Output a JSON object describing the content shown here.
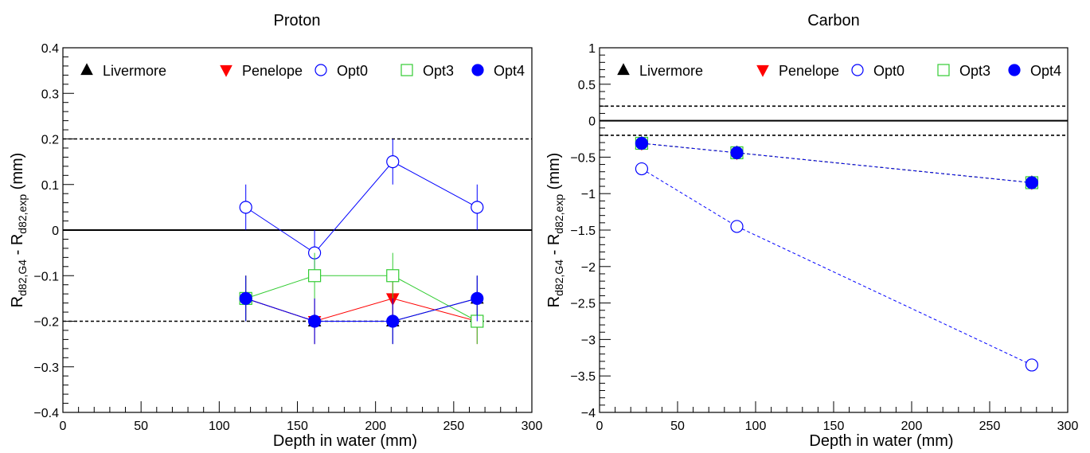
{
  "chart_data": [
    {
      "type": "scatter",
      "title": "Proton",
      "xlabel": "Depth in water (mm)",
      "ylabel": {
        "main": "R",
        "sub1": "d82,G4",
        "mid": " - R",
        "sub2": "d82,exp",
        "unit": " (mm)"
      },
      "xlim": [
        0,
        300
      ],
      "ylim": [
        -0.4,
        0.4
      ],
      "xticks": [
        0,
        50,
        100,
        150,
        200,
        250,
        300
      ],
      "xtick_labels": [
        "0",
        "50",
        "100",
        "150",
        "200",
        "250",
        "300"
      ],
      "yticks": [
        -0.4,
        -0.3,
        -0.2,
        -0.1,
        0,
        0.1,
        0.2,
        0.3,
        0.4
      ],
      "ytick_labels": [
        "−0.4",
        "−0.3",
        "−0.2",
        "−0.1",
        "0",
        "0.1",
        "0.2",
        "0.3",
        "0.4"
      ],
      "grid": false,
      "legend_position": "top",
      "reference_lines": [
        {
          "y": 0.2,
          "style": "dashed"
        },
        {
          "y": 0,
          "style": "solid"
        },
        {
          "y": -0.2,
          "style": "dashed"
        }
      ],
      "series": [
        {
          "name": "Livermore",
          "marker": "triangle-up",
          "filled": true,
          "color": "#000000",
          "line_style": "solid",
          "x": [
            117,
            161,
            211,
            265
          ],
          "y": [
            -0.15,
            -0.2,
            -0.2,
            -0.15
          ],
          "error": [
            0.05,
            0.05,
            0.05,
            0.05
          ]
        },
        {
          "name": "Penelope",
          "marker": "triangle-down",
          "filled": true,
          "color": "#ff0000",
          "line_style": "solid",
          "x": [
            117,
            161,
            211,
            265
          ],
          "y": [
            -0.15,
            -0.2,
            -0.15,
            -0.2
          ],
          "error": [
            0.05,
            0.05,
            0.05,
            0.05
          ]
        },
        {
          "name": "Opt0",
          "marker": "circle",
          "filled": false,
          "color": "#0000ff",
          "line_style": "solid",
          "x": [
            117,
            161,
            211,
            265
          ],
          "y": [
            0.05,
            -0.05,
            0.15,
            0.05
          ],
          "error": [
            0.05,
            0.05,
            0.05,
            0.05
          ]
        },
        {
          "name": "Opt3",
          "marker": "square",
          "filled": false,
          "color": "#33cc33",
          "line_style": "solid",
          "x": [
            117,
            161,
            211,
            265
          ],
          "y": [
            -0.15,
            -0.1,
            -0.1,
            -0.2
          ],
          "error": [
            0.05,
            0.05,
            0.05,
            0.05
          ]
        },
        {
          "name": "Opt4",
          "marker": "circle",
          "filled": true,
          "color": "#0000ff",
          "line_style": "solid",
          "x": [
            117,
            161,
            211,
            265
          ],
          "y": [
            -0.15,
            -0.2,
            -0.2,
            -0.15
          ],
          "error": [
            0.05,
            0.05,
            0.05,
            0.05
          ]
        }
      ]
    },
    {
      "type": "scatter",
      "title": "Carbon",
      "xlabel": "Depth in water (mm)",
      "ylabel": {
        "main": "R",
        "sub1": "d82,G4",
        "mid": " - R",
        "sub2": "d82,exp",
        "unit": " (mm)"
      },
      "xlim": [
        0,
        300
      ],
      "ylim": [
        -4,
        1
      ],
      "xticks": [
        0,
        50,
        100,
        150,
        200,
        250,
        300
      ],
      "xtick_labels": [
        "0",
        "50",
        "100",
        "150",
        "200",
        "250",
        "300"
      ],
      "yticks": [
        -4,
        -3.5,
        -3,
        -2.5,
        -2,
        -1.5,
        -1,
        -0.5,
        0,
        0.5,
        1
      ],
      "ytick_labels": [
        "−4",
        "−3.5",
        "−3",
        "−2.5",
        "−2",
        "−1.5",
        "−1",
        "−0.5",
        "0",
        "0.5",
        "1"
      ],
      "grid": false,
      "legend_position": "top",
      "reference_lines": [
        {
          "y": 0.2,
          "style": "dashed"
        },
        {
          "y": 0,
          "style": "solid"
        },
        {
          "y": -0.2,
          "style": "dashed"
        }
      ],
      "series": [
        {
          "name": "Livermore",
          "marker": "triangle-up",
          "filled": true,
          "color": "#000000",
          "line_style": "dashed",
          "x": [
            27,
            88,
            277
          ],
          "y": [
            -0.31,
            -0.44,
            -0.85
          ],
          "error": [
            0,
            0,
            0
          ]
        },
        {
          "name": "Penelope",
          "marker": "triangle-down",
          "filled": true,
          "color": "#ff0000",
          "line_style": "dashed",
          "x": [
            27,
            88,
            277
          ],
          "y": [
            -0.31,
            -0.44,
            -0.85
          ],
          "error": [
            0,
            0,
            0
          ]
        },
        {
          "name": "Opt0",
          "marker": "circle",
          "filled": false,
          "color": "#0000ff",
          "line_style": "dashed",
          "x": [
            27,
            88,
            277
          ],
          "y": [
            -0.66,
            -1.45,
            -3.35
          ],
          "error": [
            0,
            0,
            0
          ]
        },
        {
          "name": "Opt3",
          "marker": "square",
          "filled": false,
          "color": "#33cc33",
          "line_style": "dashed",
          "x": [
            27,
            88,
            277
          ],
          "y": [
            -0.31,
            -0.44,
            -0.85
          ],
          "error": [
            0,
            0,
            0
          ]
        },
        {
          "name": "Opt4",
          "marker": "circle",
          "filled": true,
          "color": "#0000ff",
          "line_style": "dashed",
          "x": [
            27,
            88,
            277
          ],
          "y": [
            -0.31,
            -0.44,
            -0.85
          ],
          "error": [
            0,
            0,
            0
          ]
        }
      ]
    }
  ]
}
